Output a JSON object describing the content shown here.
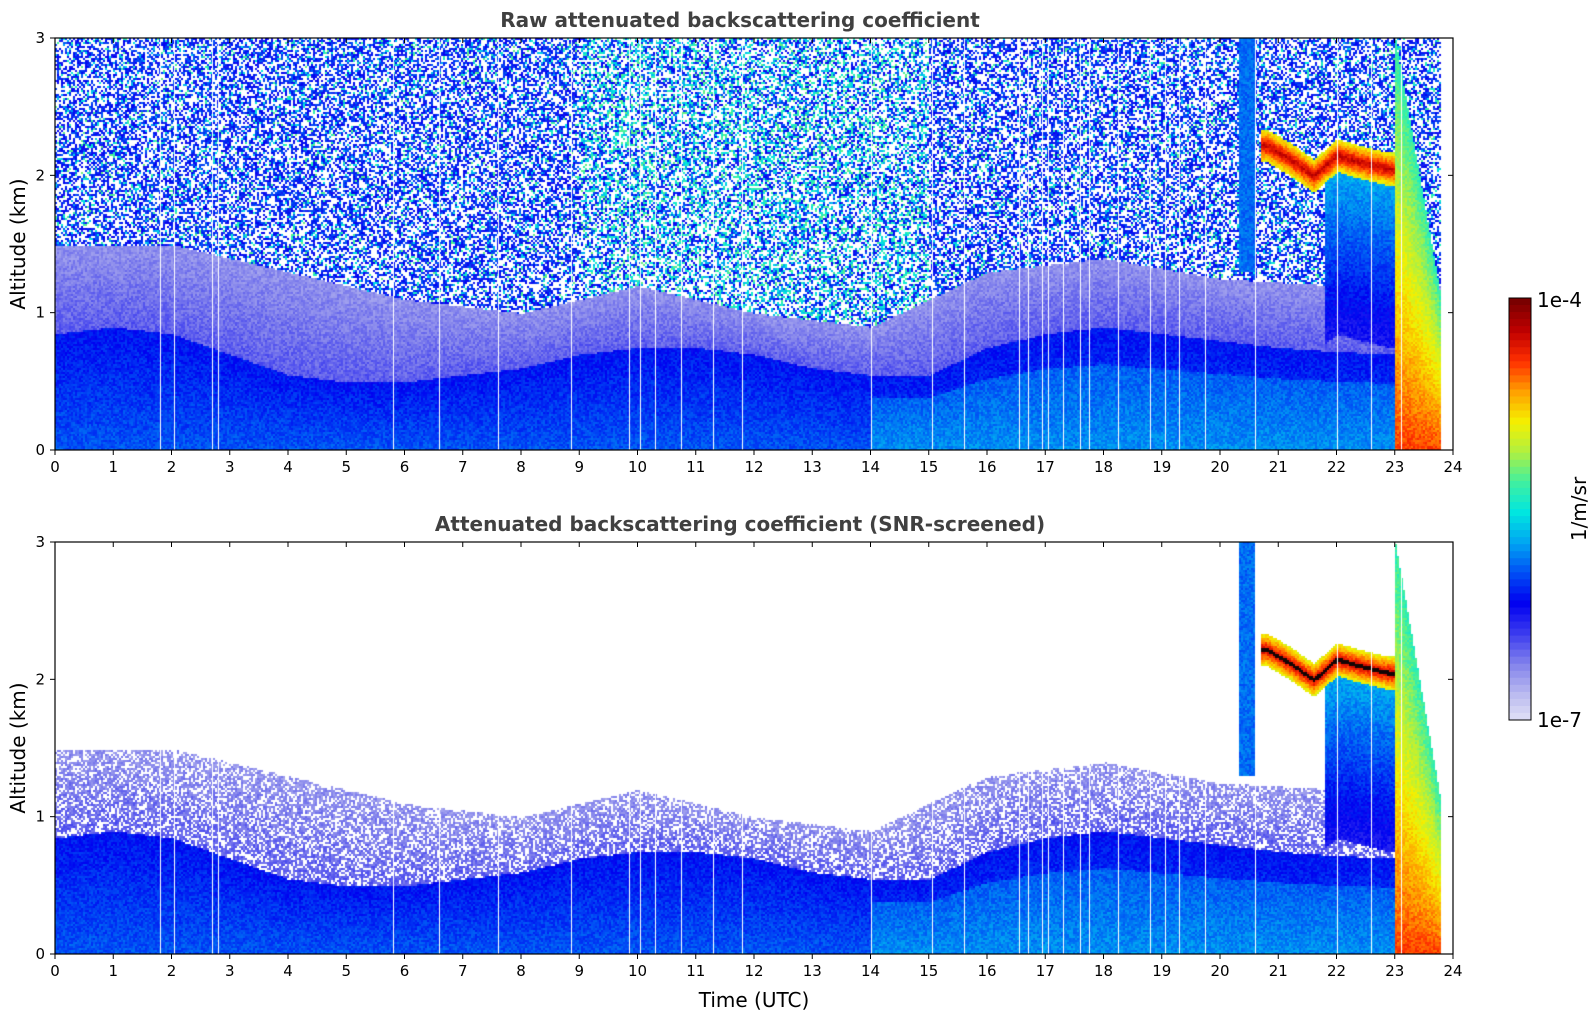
{
  "colors": {
    "colormap": [
      "#e6e6f7",
      "#b9b9ef",
      "#8080ec",
      "#3a3aef",
      "#0000f0",
      "#0050f5",
      "#00a6f2",
      "#00e6e0",
      "#40f0a0",
      "#b0f040",
      "#f5f000",
      "#ffa000",
      "#ff3000",
      "#c00000",
      "#7a0000"
    ],
    "background": "#ffffff"
  },
  "colorbar": {
    "max_label": "1e-4",
    "min_label": "1e-7",
    "unit_label": "1/m/sr",
    "scale": "log"
  },
  "chart_data": [
    {
      "type": "heatmap",
      "title": "Raw attenuated backscattering coefficient",
      "xlabel": "",
      "ylabel": "Altitude (km)",
      "xlim": [
        0,
        24
      ],
      "ylim": [
        0,
        3
      ],
      "xticks": [
        "0",
        "1",
        "2",
        "3",
        "4",
        "5",
        "6",
        "7",
        "8",
        "9",
        "10",
        "11",
        "12",
        "13",
        "14",
        "15",
        "16",
        "17",
        "18",
        "19",
        "20",
        "21",
        "22",
        "23",
        "24"
      ],
      "yticks": [
        "0",
        "1",
        "2",
        "3"
      ],
      "z_range": [
        "1e-7",
        "1e-4"
      ],
      "noise_screened": false
    },
    {
      "type": "heatmap",
      "title": "Attenuated backscattering coefficient (SNR-screened)",
      "xlabel": "Time (UTC)",
      "ylabel": "Altitude (km)",
      "xlim": [
        0,
        24
      ],
      "ylim": [
        0,
        3
      ],
      "xticks": [
        "0",
        "1",
        "2",
        "3",
        "4",
        "5",
        "6",
        "7",
        "8",
        "9",
        "10",
        "11",
        "12",
        "13",
        "14",
        "15",
        "16",
        "17",
        "18",
        "19",
        "20",
        "21",
        "22",
        "23",
        "24"
      ],
      "yticks": [
        "0",
        "1",
        "2",
        "3"
      ],
      "z_range": [
        "1e-7",
        "1e-4"
      ],
      "noise_screened": true
    }
  ],
  "profile_model": {
    "boundary_layer_top_km": [
      [
        0,
        0.85
      ],
      [
        1,
        0.9
      ],
      [
        2,
        0.85
      ],
      [
        3,
        0.7
      ],
      [
        4,
        0.55
      ],
      [
        5,
        0.5
      ],
      [
        6,
        0.5
      ],
      [
        7,
        0.55
      ],
      [
        8,
        0.6
      ],
      [
        9,
        0.7
      ],
      [
        10,
        0.75
      ],
      [
        11,
        0.75
      ],
      [
        12,
        0.7
      ],
      [
        13,
        0.6
      ],
      [
        14,
        0.55
      ],
      [
        15,
        0.55
      ],
      [
        16,
        0.75
      ],
      [
        17,
        0.85
      ],
      [
        18,
        0.9
      ],
      [
        19,
        0.85
      ],
      [
        20,
        0.8
      ],
      [
        21,
        0.75
      ],
      [
        22,
        0.72
      ],
      [
        23,
        0.7
      ],
      [
        24,
        0.7
      ]
    ],
    "residual_layer_top_km": [
      [
        0,
        1.5
      ],
      [
        2,
        1.5
      ],
      [
        4,
        1.3
      ],
      [
        6,
        1.1
      ],
      [
        8,
        1.0
      ],
      [
        10,
        1.2
      ],
      [
        12,
        1.0
      ],
      [
        14,
        0.9
      ],
      [
        16,
        1.3
      ],
      [
        18,
        1.4
      ],
      [
        20,
        1.25
      ],
      [
        22,
        1.2
      ],
      [
        24,
        1.2
      ]
    ],
    "cloud_band": [
      [
        20.8,
        2.22
      ],
      [
        21.2,
        2.12
      ],
      [
        21.6,
        2.0
      ],
      [
        22.0,
        2.15
      ],
      [
        22.4,
        2.1
      ],
      [
        22.9,
        2.05
      ]
    ],
    "precip_band_start_hour": 23.0,
    "precip_band_end_hour": 23.8,
    "gap_hours": [
      1.8,
      2.05,
      2.7,
      2.8,
      5.8,
      6.6,
      7.6,
      8.85,
      9.85,
      10.05,
      10.3,
      10.75,
      11.3,
      11.8,
      14.0,
      15.05,
      15.6,
      16.55,
      16.7,
      16.95,
      17.05,
      17.3,
      17.6,
      17.75,
      18.25,
      18.8,
      19.05,
      19.3,
      19.75,
      20.6,
      22.0,
      22.6,
      23.1
    ]
  }
}
